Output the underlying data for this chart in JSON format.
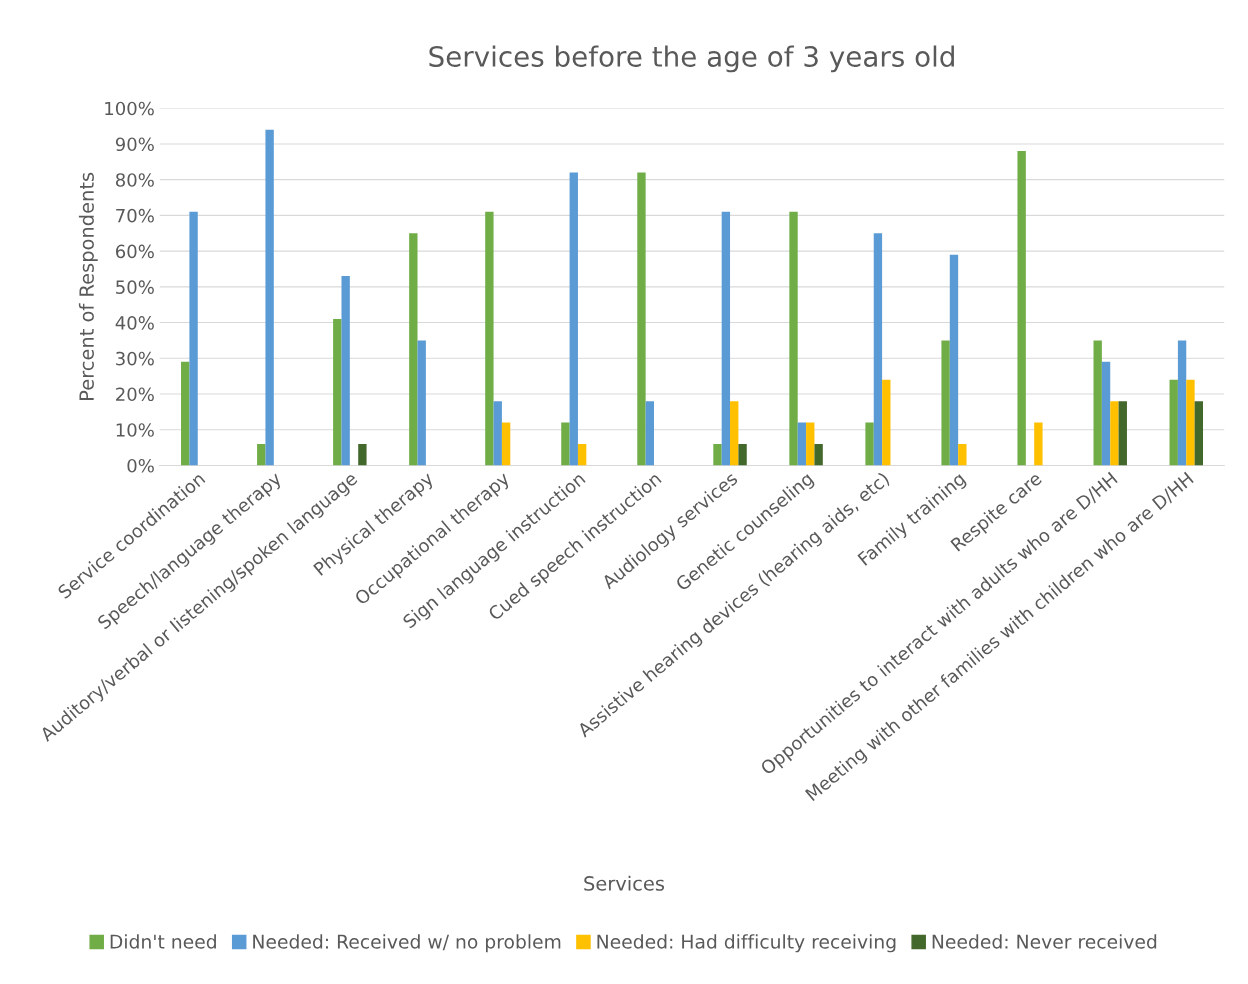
{
  "chart_data": {
    "type": "bar",
    "title": "Services before the age of 3 years old",
    "xlabel": "Services",
    "ylabel": "Percent of Respondents",
    "categories": [
      "Service coordination",
      "Speech/language therapy",
      "Auditory/verbal or listening/spoken language",
      "Physical therapy",
      "Occupational therapy",
      "Sign language instruction",
      "Cued speech instruction",
      "Audiology services",
      "Genetic counseling",
      "Assistive hearing devices (hearing aids, etc)",
      "Family training",
      "Respite care",
      "Opportunities to interact with adults who are D/HH",
      "Meeting with other families with children who are D/HH"
    ],
    "series": [
      {
        "name": "Didn't need",
        "color": "#70ad47",
        "values": [
          29,
          6,
          41,
          65,
          71,
          12,
          82,
          6,
          71,
          12,
          35,
          88,
          35,
          24
        ]
      },
      {
        "name": "Needed: Received w/ no problem",
        "color": "#5b9bd5",
        "values": [
          71,
          94,
          53,
          35,
          18,
          82,
          18,
          71,
          12,
          65,
          59,
          null,
          29,
          35
        ]
      },
      {
        "name": "Needed: Had difficulty receiving",
        "color": "#ffc000",
        "values": [
          null,
          null,
          null,
          null,
          12,
          6,
          null,
          18,
          12,
          24,
          6,
          12,
          18,
          24
        ]
      },
      {
        "name": "Needed: Never received",
        "color": "#43682b",
        "values": [
          null,
          null,
          6,
          null,
          null,
          null,
          null,
          6,
          6,
          null,
          null,
          null,
          18,
          18
        ]
      }
    ],
    "ylim": [
      0,
      100
    ],
    "yticks": [
      {
        "value": 0,
        "label": "0%"
      },
      {
        "value": 10,
        "label": "10%"
      },
      {
        "value": 20,
        "label": "20%"
      },
      {
        "value": 30,
        "label": "30%"
      },
      {
        "value": 40,
        "label": "40%"
      },
      {
        "value": 50,
        "label": "50%"
      },
      {
        "value": 60,
        "label": "60%"
      },
      {
        "value": 70,
        "label": "70%"
      },
      {
        "value": 80,
        "label": "80%"
      },
      {
        "value": 90,
        "label": "90%"
      },
      {
        "value": 100,
        "label": "100%"
      }
    ],
    "grid": "y",
    "legend": "bottom"
  }
}
